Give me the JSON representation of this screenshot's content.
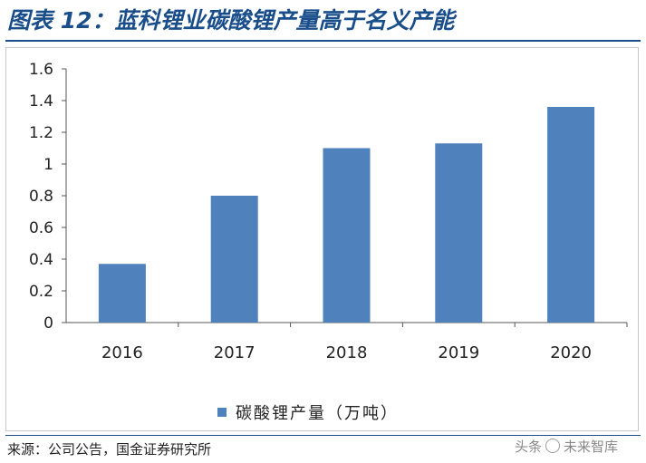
{
  "header": {
    "title": "图表 12：蓝科锂业碳酸锂产量高于名义产能"
  },
  "footer": {
    "source": "来源：公司公告，国金证券研究所",
    "watermark_prefix": "头条",
    "watermark_brand": "未来智库"
  },
  "colors": {
    "bar": "#4f81bd",
    "title": "#1a4e8a"
  },
  "chart_data": {
    "type": "bar",
    "title": "",
    "xlabel": "",
    "ylabel": "",
    "categories": [
      "2016",
      "2017",
      "2018",
      "2019",
      "2020"
    ],
    "series": [
      {
        "name": "碳酸锂产量（万吨）",
        "values": [
          0.37,
          0.8,
          1.1,
          1.13,
          1.36
        ]
      }
    ],
    "ylim": [
      0,
      1.6
    ],
    "yticks": [
      "0",
      "0.2",
      "0.4",
      "0.6",
      "0.8",
      "1",
      "1.2",
      "1.4",
      "1.6"
    ],
    "grid": false,
    "legend_position": "bottom"
  }
}
